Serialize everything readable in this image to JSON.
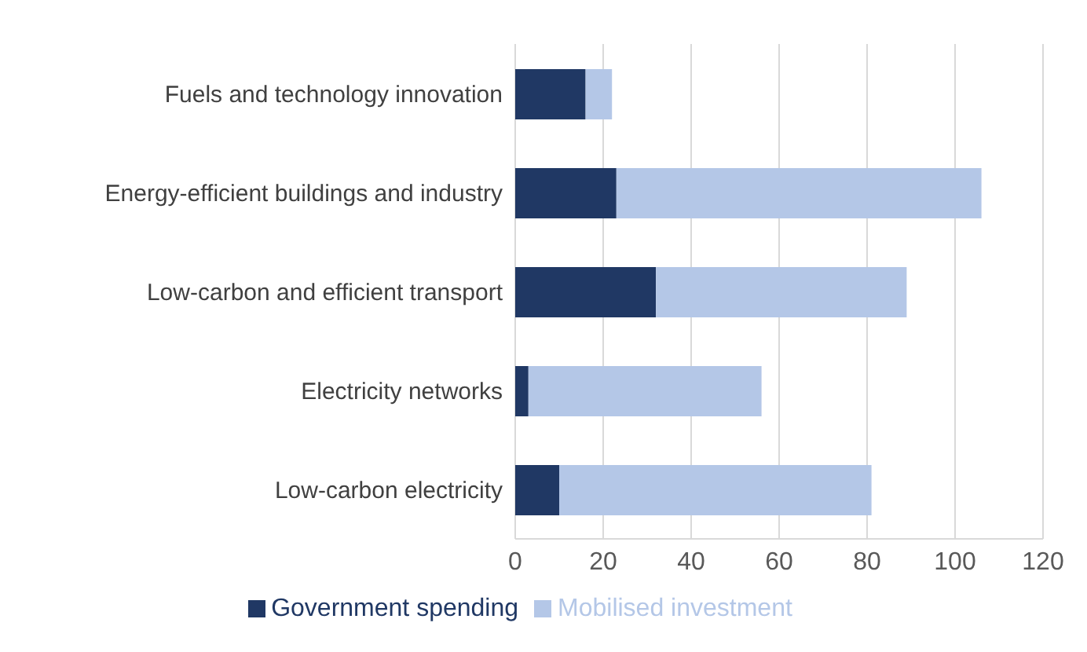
{
  "chart_data": {
    "type": "bar",
    "orientation": "horizontal",
    "stacked": true,
    "categories": [
      "Fuels and technology innovation",
      "Energy-efficient buildings and industry",
      "Low-carbon and efficient transport",
      "Electricity networks",
      "Low-carbon electricity"
    ],
    "series": [
      {
        "name": "Government spending",
        "color": "#203864",
        "values": [
          16,
          23,
          32,
          3,
          10
        ]
      },
      {
        "name": "Mobilised investment",
        "color": "#b4c7e7",
        "values": [
          6,
          83,
          57,
          53,
          71
        ]
      }
    ],
    "xlim": [
      0,
      120
    ],
    "xticks": [
      0,
      20,
      40,
      60,
      80,
      100,
      120
    ],
    "grid": "x",
    "legend": "bottom"
  }
}
